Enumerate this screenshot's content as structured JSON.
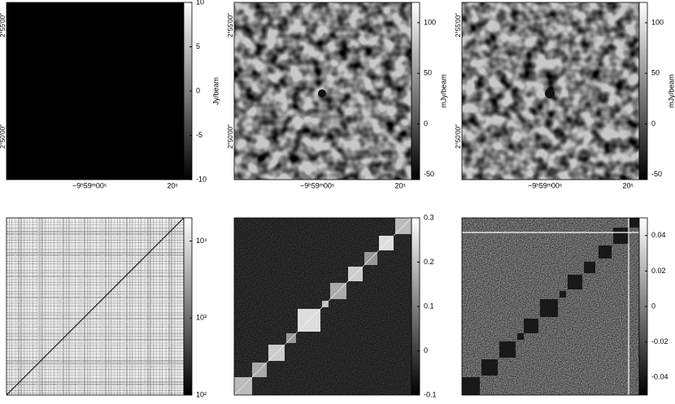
{
  "chart_data": [
    {
      "type": "heatmap",
      "colorbar_label": "Jy/beam",
      "clim": [
        -10,
        10
      ],
      "cticks": [
        10,
        5,
        0,
        -5,
        -10
      ],
      "xticklabels": [
        "−9ʰ59ᵐ00ˢ",
        "20ˢ"
      ],
      "yticklabels": [
        "2°55′00″",
        "2°50′00″"
      ]
    },
    {
      "type": "heatmap",
      "colorbar_label": "mJy/beam",
      "clim": [
        -55,
        120
      ],
      "cticks": [
        100,
        50,
        0,
        -50
      ],
      "xticklabels": [
        "−9ʰ59ᵐ00ˢ",
        "20ˢ"
      ],
      "yticklabels": [
        "2°55′00″",
        "2°50′00″"
      ]
    },
    {
      "type": "heatmap",
      "colorbar_label": "mJy/beam",
      "clim": [
        -55,
        120
      ],
      "cticks": [
        100,
        50,
        0,
        -50
      ],
      "xticklabels": [
        "−9ʰ59ᵐ00ˢ",
        "20ˢ"
      ],
      "yticklabels": [
        "2°55′00″",
        "2°50′00″"
      ]
    },
    {
      "type": "matrix",
      "log_scale": true,
      "clim": [
        100,
        20000
      ],
      "cticks": [
        {
          "value": 10000,
          "label": "10⁴"
        },
        {
          "value": 1000,
          "label": "10³"
        },
        {
          "value": 100,
          "label": "10²"
        }
      ]
    },
    {
      "type": "matrix",
      "clim": [
        -0.1,
        0.3
      ],
      "cticks": [
        0.3,
        0.2,
        0.1,
        0,
        -0.1
      ]
    },
    {
      "type": "matrix",
      "clim": [
        -0.05,
        0.05
      ],
      "cticks": [
        0.04,
        0.02,
        0,
        -0.02,
        -0.04
      ]
    }
  ]
}
